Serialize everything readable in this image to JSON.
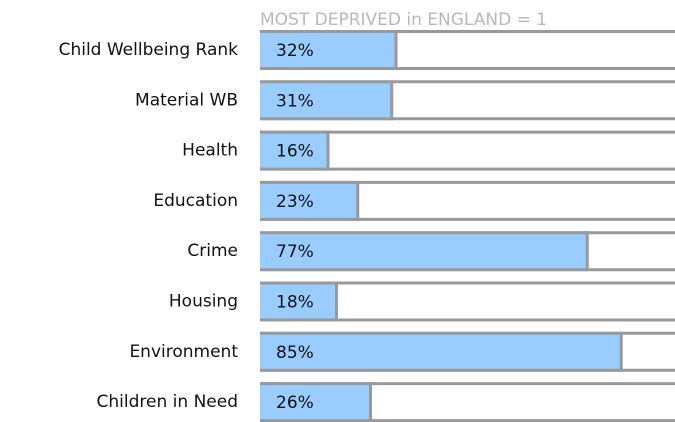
{
  "chart_data": {
    "type": "bar",
    "orientation": "horizontal",
    "title": "MOST DEPRIVED in ENGLAND = 1",
    "categories": [
      "Child Wellbeing Rank",
      "Material WB",
      "Health",
      "Education",
      "Crime",
      "Housing",
      "Environment",
      "Children in Need"
    ],
    "values": [
      32,
      31,
      16,
      23,
      77,
      18,
      85,
      26
    ],
    "value_labels": [
      "32%",
      "31%",
      "16%",
      "23%",
      "77%",
      "18%",
      "85%",
      "26%"
    ],
    "color": "#99ccff",
    "xlim": [
      0,
      100
    ]
  }
}
